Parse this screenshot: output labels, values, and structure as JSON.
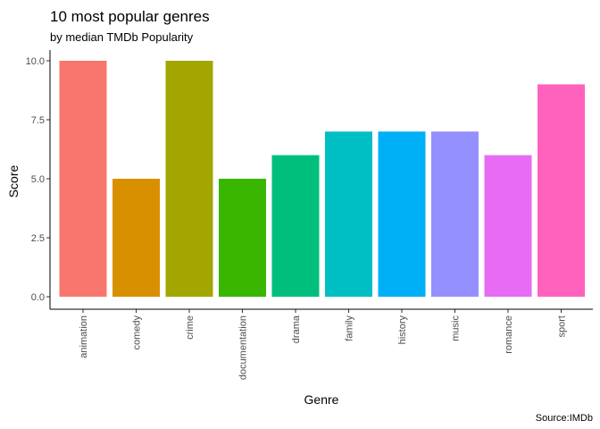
{
  "chart_data": {
    "type": "bar",
    "title": "10 most popular genres",
    "subtitle": "by median TMDb Popularity",
    "xlabel": "Genre",
    "ylabel": "Score",
    "caption": "Source:IMDb",
    "categories": [
      "animation",
      "comedy",
      "crime",
      "documentation",
      "drama",
      "family",
      "history",
      "music",
      "romance",
      "sport"
    ],
    "values": [
      10,
      5,
      10,
      5,
      6,
      7,
      7,
      7,
      6,
      9
    ],
    "colors": [
      "#F8766D",
      "#D89000",
      "#A3A500",
      "#39B600",
      "#00BF7D",
      "#00BFC4",
      "#00B0F6",
      "#9590FF",
      "#E76BF3",
      "#FF62BC"
    ],
    "y_ticks": [
      "0.0",
      "2.5",
      "5.0",
      "7.5",
      "10.0"
    ],
    "ylim": [
      0,
      10
    ],
    "grid": false,
    "legend": "none"
  }
}
